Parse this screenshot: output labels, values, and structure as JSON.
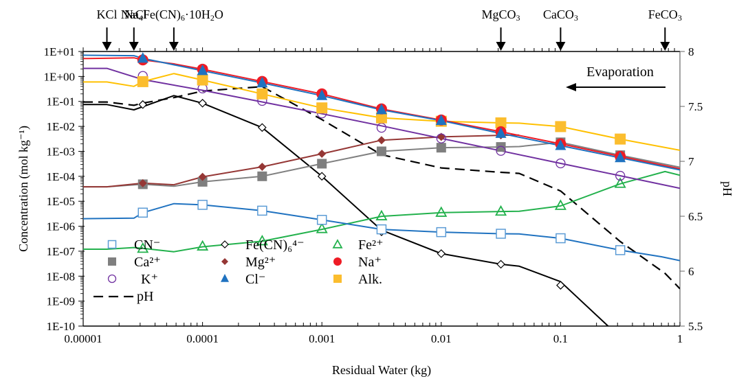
{
  "chart_data": {
    "type": "line",
    "title": "",
    "xlabel": "Residual Water (kg)",
    "ylabel": "Concentration (mol kg⁻¹)",
    "y2label": "pH",
    "xscale": "log",
    "yscale": "log",
    "xlim": [
      1e-05,
      1
    ],
    "ylim": [
      1e-10,
      10
    ],
    "y2lim": [
      5.5,
      8
    ],
    "grid": false,
    "legend_position": "bottom-left",
    "x_tick_labels": [
      "0.00001",
      "0.0001",
      "0.001",
      "0.01",
      "0.1",
      "1"
    ],
    "x_ticks": [
      1e-05,
      0.0001,
      0.001,
      0.01,
      0.1,
      1
    ],
    "y_tick_labels": [
      "1E-10",
      "1E-09",
      "1E-08",
      "1E-07",
      "1E-06",
      "1E-05",
      "1E-04",
      "1E-03",
      "1E-02",
      "1E-01",
      "1E+00",
      "1E+01"
    ],
    "y_ticks": [
      1e-10,
      1e-09,
      1e-08,
      1e-07,
      1e-06,
      1e-05,
      0.0001,
      0.001,
      0.01,
      0.1,
      1,
      10
    ],
    "y2_tick_labels": [
      "5.5",
      "6",
      "6.5",
      "7",
      "7.5",
      "8"
    ],
    "y2_ticks": [
      5.5,
      6,
      6.5,
      7,
      7.5,
      8
    ],
    "annotations": {
      "minerals": [
        {
          "label_parts": [
            [
              "KCl",
              ""
            ]
          ],
          "x": 1.58e-05
        },
        {
          "label_parts": [
            [
              "NaCl",
              ""
            ]
          ],
          "x": 2.66e-05
        },
        {
          "label_parts": [
            [
              "Na",
              ""
            ],
            [
              "4",
              "sub"
            ],
            [
              "Fe(CN)",
              ""
            ],
            [
              "6",
              "sub"
            ],
            [
              "·10H",
              ""
            ],
            [
              "2",
              "sub"
            ],
            [
              "O",
              ""
            ]
          ],
          "x": 5.75e-05
        },
        {
          "label_parts": [
            [
              "MgCO",
              ""
            ],
            [
              "3",
              "sub"
            ]
          ],
          "x": 0.0316
        },
        {
          "label_parts": [
            [
              "CaCO",
              ""
            ],
            [
              "3",
              "sub"
            ]
          ],
          "x": 0.1
        },
        {
          "label_parts": [
            [
              "FeCO",
              ""
            ],
            [
              "3",
              "sub"
            ]
          ],
          "x": 0.75
        }
      ],
      "evaporation": {
        "label": "Evaporation",
        "direction": "left"
      }
    },
    "series": [
      {
        "name": "CN⁻",
        "key": "cn",
        "axis": "left",
        "color": "#1f72c0",
        "marker": "open-square",
        "marker_color": "#5b9bd5",
        "line": "solid",
        "line_x": [
          1e-05,
          2.66e-05,
          3.16e-05,
          5.75e-05,
          0.0001,
          0.000316,
          0.001,
          0.00316,
          0.01,
          0.0316,
          0.045,
          0.1,
          0.316,
          0.7,
          1
        ],
        "line_y": [
          2e-06,
          2.1e-06,
          3.5e-06,
          8e-06,
          7.2e-06,
          4.2e-06,
          1.8e-06,
          7.5e-07,
          5.8e-07,
          5e-07,
          4.9e-07,
          3.3e-07,
          1.1e-07,
          6e-08,
          4.2e-08
        ],
        "marker_x": [
          3.16e-05,
          0.0001,
          0.000316,
          0.001,
          0.00316,
          0.01,
          0.0316,
          0.1,
          0.316
        ],
        "marker_y": [
          3.5e-06,
          7.2e-06,
          4.2e-06,
          1.8e-06,
          7.5e-07,
          5.8e-07,
          5e-07,
          3.3e-07,
          1.1e-07
        ]
      },
      {
        "name": "Ca²⁺",
        "key": "ca",
        "axis": "left",
        "color": "#808080",
        "marker": "filled-square",
        "marker_color": "#7f7f7f",
        "line": "solid",
        "line_x": [
          1e-05,
          1.58e-05,
          3.16e-05,
          5.75e-05,
          0.0001,
          0.000316,
          0.001,
          0.00316,
          0.01,
          0.0316,
          0.045,
          0.1,
          0.316,
          1
        ],
        "line_y": [
          3.8e-05,
          3.8e-05,
          4.8e-05,
          4e-05,
          6e-05,
          0.0001,
          0.00032,
          0.001,
          0.0014,
          0.0015,
          0.00155,
          0.0023,
          0.0007,
          0.00023
        ],
        "marker_x": [
          3.16e-05,
          0.0001,
          0.000316,
          0.001,
          0.00316,
          0.01,
          0.0316,
          0.1,
          0.316
        ],
        "marker_y": [
          4.8e-05,
          6e-05,
          0.0001,
          0.00032,
          0.001,
          0.0014,
          0.0015,
          0.0023,
          0.0007
        ]
      },
      {
        "name": "K⁺",
        "key": "k",
        "axis": "left",
        "color": "#7030a0",
        "marker": "open-circle",
        "marker_color": "#7030a0",
        "line": "solid",
        "line_x": [
          1e-05,
          1.58e-05,
          3.16e-05,
          0.0001,
          0.000316,
          0.001,
          0.00316,
          0.01,
          0.0316,
          0.1,
          0.316,
          1
        ],
        "line_y": [
          2.1,
          2.1,
          0.75,
          0.28,
          0.095,
          0.032,
          0.0105,
          0.0033,
          0.00105,
          0.00033,
          0.000105,
          3.3e-05
        ],
        "marker_x": [
          3.16e-05,
          0.0001,
          0.000316,
          0.001,
          0.00316,
          0.01,
          0.0316,
          0.1,
          0.316
        ],
        "marker_y": [
          1.05,
          0.33,
          0.105,
          0.033,
          0.0088,
          0.0033,
          0.00105,
          0.00033,
          0.000105
        ]
      },
      {
        "name": "Fe(CN)₆⁴⁻",
        "key": "fecn",
        "axis": "left",
        "color": "#000000",
        "marker": "open-diamond",
        "marker_color": "#000000",
        "line": "solid",
        "line_x": [
          1e-05,
          1.58e-05,
          2.66e-05,
          5.75e-05,
          0.0001,
          0.000316,
          0.001,
          0.00316,
          0.01,
          0.0316,
          0.045,
          0.1,
          0.25,
          0.3
        ],
        "line_y": [
          0.075,
          0.075,
          0.046,
          0.17,
          0.085,
          0.009,
          0.0001,
          7e-07,
          8e-08,
          3e-08,
          2.5e-08,
          6e-09,
          1e-10,
          5e-11
        ],
        "marker_x": [
          3.16e-05,
          0.0001,
          0.000316,
          0.001,
          0.00316,
          0.01,
          0.0316,
          0.1
        ],
        "marker_y": [
          0.075,
          0.085,
          0.009,
          0.0001,
          6e-07,
          8e-08,
          3e-08,
          4.3e-09
        ]
      },
      {
        "name": "Mg²⁺",
        "key": "mg",
        "axis": "left",
        "color": "#953735",
        "marker": "filled-diamond",
        "marker_color": "#953735",
        "line": "solid",
        "line_x": [
          1e-05,
          1.58e-05,
          3.16e-05,
          5.75e-05,
          0.0001,
          0.000316,
          0.001,
          0.00316,
          0.01,
          0.0316,
          0.045
        ],
        "line_y": [
          3.8e-05,
          3.8e-05,
          5.3e-05,
          4.6e-05,
          9.5e-05,
          0.00024,
          0.0008,
          0.0028,
          0.0038,
          0.0044,
          0.0045
        ],
        "marker_x": [
          3.16e-05,
          0.0001,
          0.000316,
          0.001,
          0.00316,
          0.01,
          0.0316
        ],
        "marker_y": [
          5.3e-05,
          9.5e-05,
          0.00024,
          0.0008,
          0.0028,
          0.0038,
          0.0044
        ]
      },
      {
        "name": "Fe²⁺",
        "key": "fe",
        "axis": "left",
        "color": "#22b14c",
        "marker": "open-triangle",
        "marker_color": "#22b14c",
        "line": "solid",
        "line_x": [
          1e-05,
          1.58e-05,
          2.66e-05,
          3.16e-05,
          5.75e-05,
          0.0001,
          0.000316,
          0.001,
          0.00316,
          0.01,
          0.0316,
          0.045,
          0.1,
          0.316,
          0.75,
          1
        ],
        "line_y": [
          1.2e-07,
          1.2e-07,
          1.4e-07,
          1.3e-07,
          9.5e-08,
          1.5e-07,
          2.5e-07,
          7.5e-07,
          2.5e-06,
          3.5e-06,
          3.9e-06,
          4e-06,
          6.5e-06,
          5e-05,
          0.000155,
          0.00011
        ],
        "marker_x": [
          3.16e-05,
          0.0001,
          0.000316,
          0.001,
          0.00316,
          0.01,
          0.0316,
          0.1,
          0.316
        ],
        "marker_y": [
          1.3e-07,
          1.6e-07,
          2.6e-07,
          8e-07,
          2.6e-06,
          3.6e-06,
          4e-06,
          6.8e-06,
          5.2e-05
        ]
      },
      {
        "name": "Na⁺",
        "key": "na",
        "axis": "left",
        "color": "#ee1c25",
        "marker": "filled-circle",
        "marker_color": "#ee1c25",
        "line": "solid",
        "line_x": [
          1e-05,
          2.66e-05,
          3.16e-05,
          5.75e-05,
          0.0001,
          0.000316,
          0.001,
          0.00316,
          0.01,
          0.0316,
          0.1,
          0.316,
          1
        ],
        "line_y": [
          5.2,
          5.6,
          4.6,
          3.2,
          1.95,
          0.63,
          0.2,
          0.05,
          0.018,
          0.0061,
          0.002,
          0.00063,
          0.0002
        ],
        "marker_x": [
          3.16e-05,
          0.0001,
          0.000316,
          0.001,
          0.00316,
          0.01,
          0.0316,
          0.1,
          0.316
        ],
        "marker_y": [
          4.6,
          1.95,
          0.63,
          0.2,
          0.05,
          0.018,
          0.0061,
          0.002,
          0.00063
        ]
      },
      {
        "name": "Cl⁻",
        "key": "cl",
        "axis": "left",
        "color": "#1f72c0",
        "marker": "filled-triangle",
        "marker_color": "#1f72c0",
        "line": "solid",
        "line_x": [
          1e-05,
          2.66e-05,
          3.16e-05,
          0.0001,
          0.000316,
          0.001,
          0.00316,
          0.01,
          0.0316,
          0.1,
          0.316,
          1
        ],
        "line_y": [
          7.1,
          6.8,
          5.3,
          1.7,
          0.55,
          0.17,
          0.046,
          0.017,
          0.0052,
          0.0017,
          0.00055,
          0.00018
        ],
        "marker_x": [
          3.16e-05,
          0.0001,
          0.000316,
          0.001,
          0.00316,
          0.01,
          0.0316,
          0.1,
          0.316
        ],
        "marker_y": [
          5.3,
          1.7,
          0.55,
          0.17,
          0.046,
          0.017,
          0.0052,
          0.0017,
          0.00055
        ]
      },
      {
        "name": "Alk.",
        "key": "alk",
        "axis": "left",
        "color": "#ffc000",
        "marker": "filled-square",
        "marker_color": "#fbbd2e",
        "line": "solid",
        "line_x": [
          1e-05,
          1.58e-05,
          2.66e-05,
          3.16e-05,
          5.75e-05,
          0.0001,
          0.000316,
          0.001,
          0.00316,
          0.01,
          0.0316,
          0.045,
          0.1,
          0.316,
          1
        ],
        "line_y": [
          0.6,
          0.6,
          0.4,
          0.62,
          1.3,
          0.72,
          0.2,
          0.055,
          0.022,
          0.016,
          0.0138,
          0.0135,
          0.0098,
          0.0031,
          0.0011
        ],
        "marker_x": [
          3.16e-05,
          0.0001,
          0.000316,
          0.001,
          0.00316,
          0.01,
          0.0316,
          0.1,
          0.316
        ],
        "marker_y": [
          0.62,
          0.72,
          0.2,
          0.055,
          0.022,
          0.016,
          0.0138,
          0.0098,
          0.0031
        ]
      },
      {
        "name": "pH",
        "key": "ph",
        "axis": "right",
        "color": "#000000",
        "marker": "none",
        "line": "dashed",
        "line_x": [
          1e-05,
          1.58e-05,
          2.66e-05,
          3.16e-05,
          5.75e-05,
          0.0001,
          0.000316,
          0.001,
          0.00316,
          0.01,
          0.0316,
          0.045,
          0.1,
          0.316,
          0.75,
          1
        ],
        "line_y": [
          7.54,
          7.54,
          7.51,
          7.53,
          7.58,
          7.64,
          7.68,
          7.38,
          7.06,
          6.94,
          6.9,
          6.89,
          6.73,
          6.27,
          5.98,
          5.84
        ]
      }
    ]
  },
  "legend": {
    "rows": [
      [
        {
          "key": "cn",
          "label": "CN⁻"
        },
        {
          "key": "fecn",
          "label": "Fe(CN)₆⁴⁻"
        },
        {
          "key": "fe",
          "label": "Fe²⁺"
        }
      ],
      [
        {
          "key": "ca",
          "label": "Ca²⁺"
        },
        {
          "key": "mg",
          "label": "Mg²⁺"
        },
        {
          "key": "na",
          "label": "Na⁺"
        }
      ],
      [
        {
          "key": "k",
          "label": "K⁺"
        },
        {
          "key": "cl",
          "label": "Cl⁻"
        },
        {
          "key": "alk",
          "label": "Alk."
        }
      ],
      [
        {
          "key": "ph",
          "label": "pH"
        }
      ]
    ]
  }
}
